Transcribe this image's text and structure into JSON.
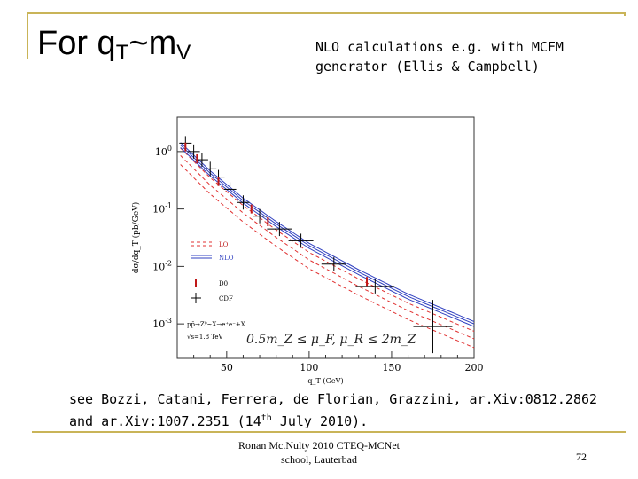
{
  "slide": {
    "title_main": "For q",
    "title_sub1": "T",
    "title_mid": "~m",
    "title_sub2": "V",
    "nlo_line1": "NLO calculations e.g. with MCFM",
    "nlo_line2": "generator (Ellis & Campbell)",
    "refs_line1": "see Bozzi, Catani, Ferrera, de Florian, Grazzini, ar.Xiv:0812.2862",
    "refs_line2_a": "and ar.Xiv:1007.2351 (14",
    "refs_line2_sup": "th",
    "refs_line2_b": " July 2010).",
    "footer_line1": "Ronan Mc.Nulty 2010 CTEQ-MCNet",
    "footer_line2": "school, Lauterbad",
    "page_number": "72"
  },
  "chart_data": {
    "type": "scatter",
    "xlabel": "q_T (GeV)",
    "ylabel": "dσ/dq_T (pb/GeV)",
    "xlim": [
      20,
      200
    ],
    "ylim_log10": [
      -3.6,
      0.6
    ],
    "y_scale": "log",
    "x_ticks": [
      "50",
      "100",
      "150",
      "200"
    ],
    "y_ticks": [
      "10^0",
      "10^-1",
      "10^-2",
      "10^-3"
    ],
    "legend": [
      "LO",
      "NLO",
      "D0",
      "CDF"
    ],
    "annotations": [
      "pp̄→Z⁰~X→e⁺e⁻+X",
      "√s=1.8 TeV",
      "0.5m_Z ≤ μ_F, μ_R ≤ 2m_Z"
    ],
    "series": [
      {
        "name": "LO",
        "x": [
          22,
          40,
          60,
          80,
          100,
          130,
          160,
          200
        ],
        "y": [
          0.85,
          0.26,
          0.085,
          0.032,
          0.013,
          0.0045,
          0.0017,
          0.00055
        ]
      },
      {
        "name": "NLO",
        "x": [
          22,
          40,
          60,
          80,
          100,
          130,
          160,
          200
        ],
        "y": [
          1.3,
          0.42,
          0.14,
          0.055,
          0.023,
          0.008,
          0.003,
          0.001
        ]
      },
      {
        "name": "D0",
        "x": [
          25,
          32,
          45,
          65,
          75,
          135
        ],
        "y": [
          1.2,
          0.75,
          0.3,
          0.1,
          0.06,
          0.0055
        ]
      },
      {
        "name": "CDF",
        "x": [
          25,
          30,
          35,
          40,
          45,
          52,
          60,
          70,
          82,
          95,
          115,
          140,
          175
        ],
        "y": [
          1.4,
          1.0,
          0.72,
          0.5,
          0.36,
          0.22,
          0.13,
          0.075,
          0.045,
          0.028,
          0.011,
          0.0045,
          0.0009
        ]
      }
    ]
  }
}
